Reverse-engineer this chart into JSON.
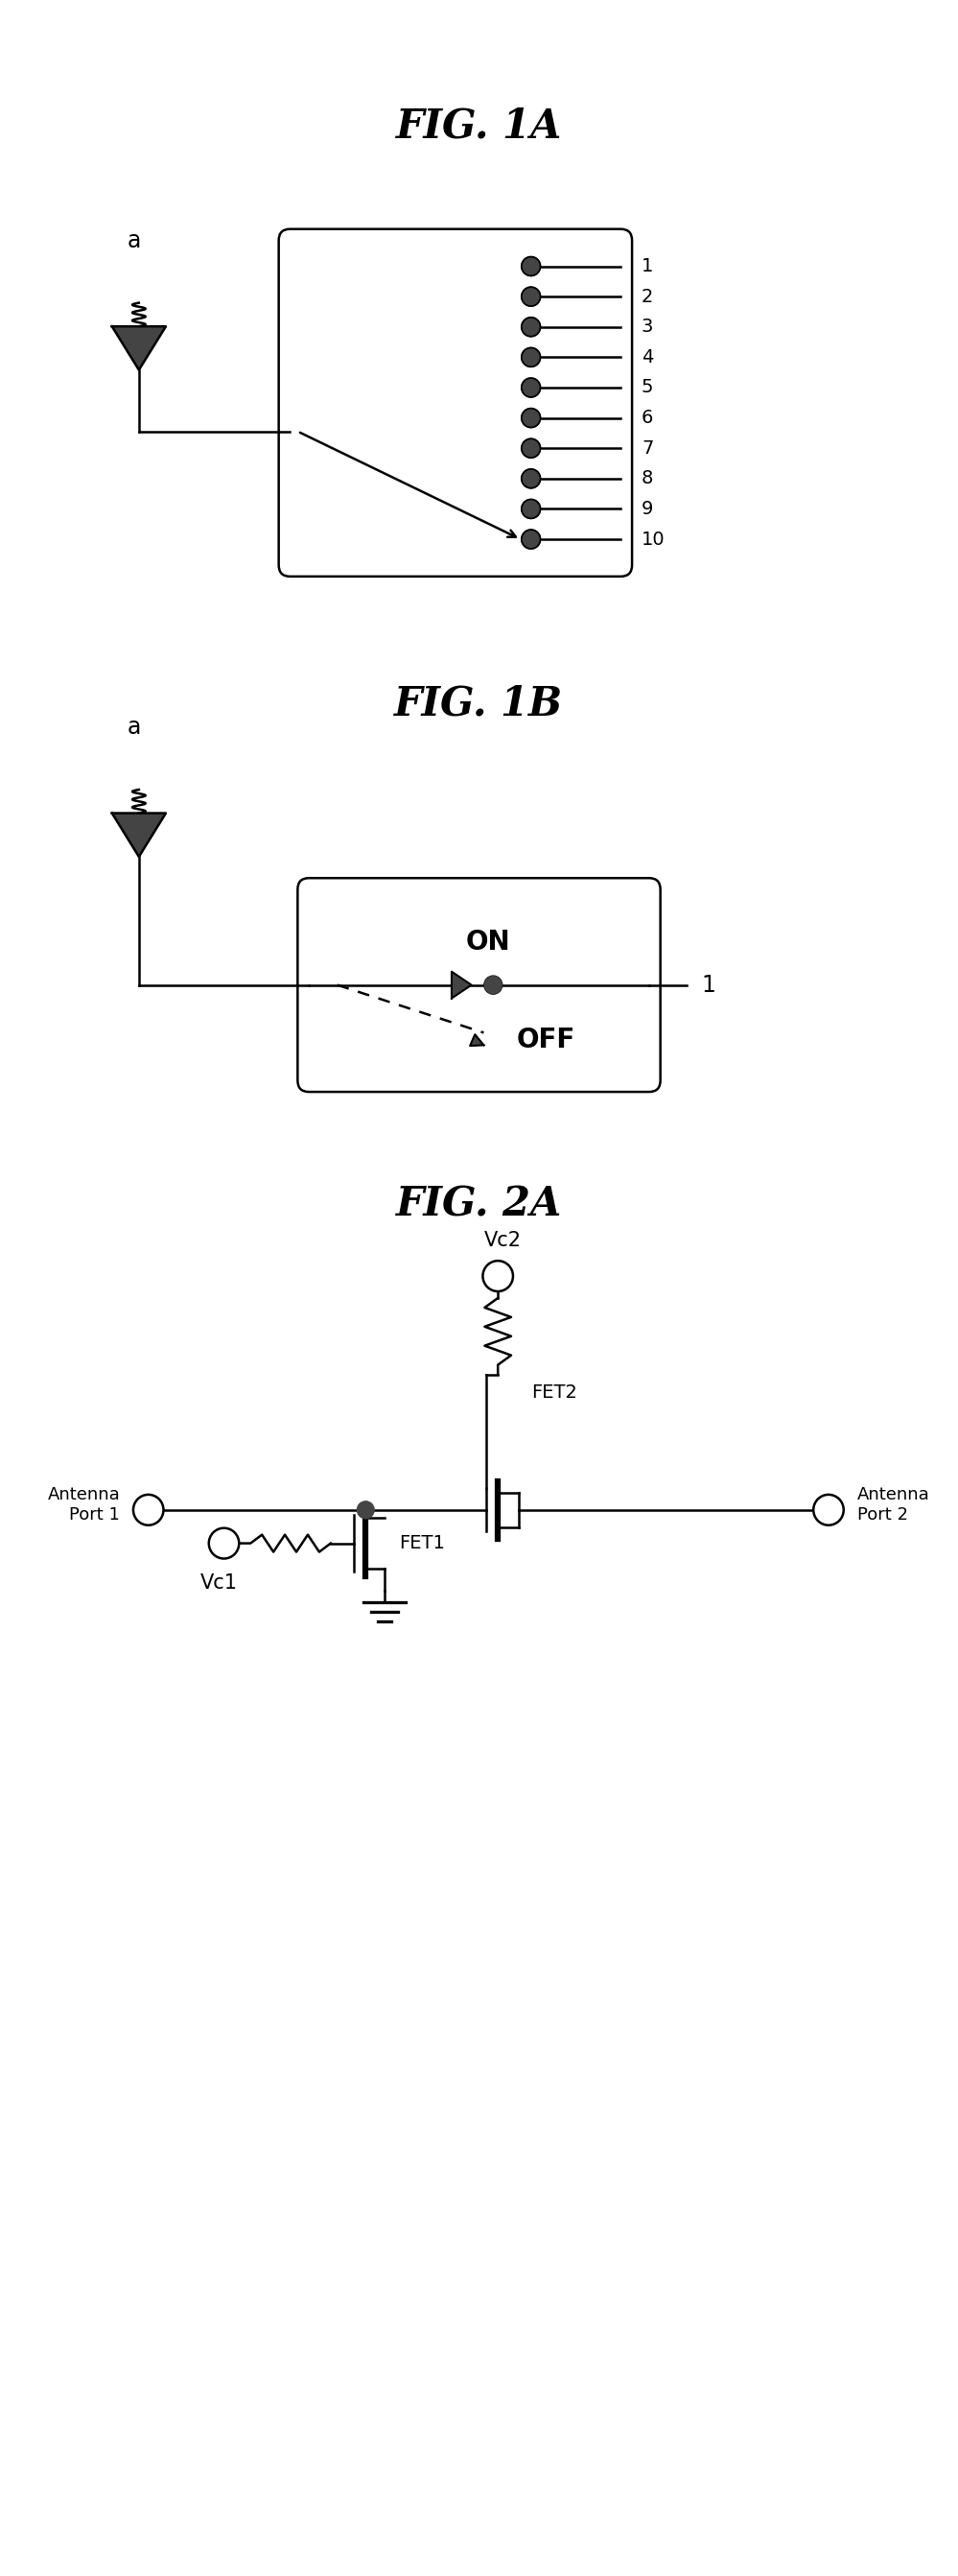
{
  "fig_width": 9.99,
  "fig_height": 26.85,
  "bg_color": "#ffffff",
  "line_color": "#000000",
  "fill_color": "#444444",
  "fig1a_title": "FIG. 1A",
  "fig1b_title": "FIG. 1B",
  "fig2a_title": "FIG. 2A",
  "n_ports_1a": 10,
  "lw": 1.8
}
